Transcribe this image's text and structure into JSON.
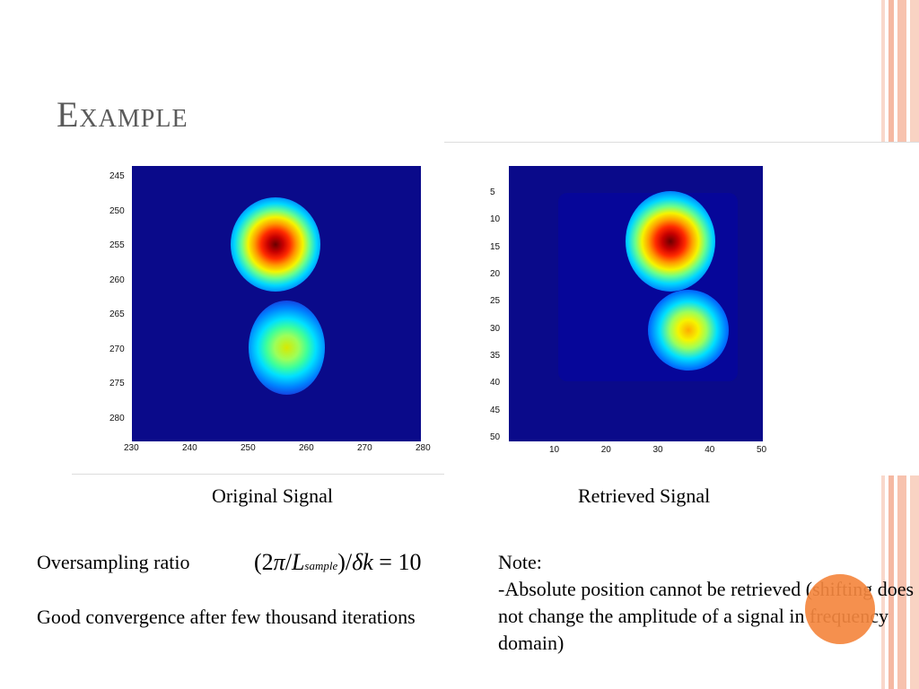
{
  "slide": {
    "title": "Example",
    "captions": {
      "left": "Original Signal",
      "right": "Retrieved Signal"
    },
    "left_text": {
      "oversampling_label": "Oversampling ratio",
      "formula": {
        "open": "(2",
        "pi": "π",
        "slash": "/",
        "L": "L",
        "sub": "sample",
        "close": ")/",
        "delta": "δ",
        "k": "k",
        "eq": " = 10"
      },
      "convergence": "Good convergence after few thousand iterations"
    },
    "note": {
      "heading": "Note:",
      "body": "-Absolute position cannot be retrieved (shifting does not change the amplitude of a signal in frequency domain)"
    }
  },
  "plots": {
    "original": {
      "x_ticks": [
        "230",
        "240",
        "250",
        "260",
        "270",
        "280"
      ],
      "y_ticks": [
        "245",
        "250",
        "255",
        "260",
        "265",
        "270",
        "275",
        "280"
      ]
    },
    "retrieved": {
      "x_ticks": [
        "10",
        "20",
        "30",
        "40",
        "50"
      ],
      "y_ticks": [
        "5",
        "10",
        "15",
        "20",
        "25",
        "30",
        "35",
        "40",
        "45",
        "50"
      ]
    }
  },
  "colors": {
    "accent_orange": "#f4873f",
    "stripe_pink": "#f7c9b8",
    "plot_background": "#0a0a8a"
  }
}
